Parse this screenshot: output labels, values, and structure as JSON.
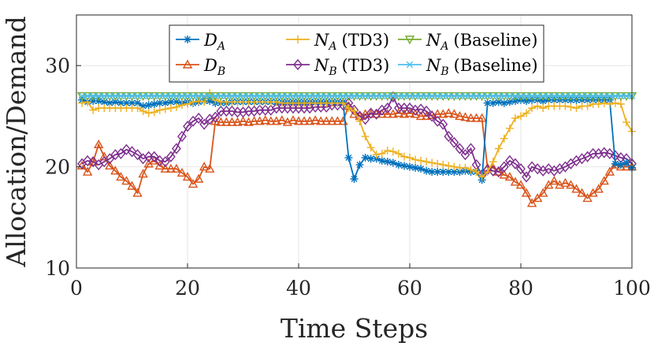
{
  "chart_data": {
    "type": "line",
    "xlabel": "Time Steps",
    "ylabel": "Allocation/Demand",
    "xlim": [
      0,
      100
    ],
    "ylim": [
      10,
      35
    ],
    "xticks": [
      "0",
      "20",
      "40",
      "60",
      "80",
      "100"
    ],
    "yticks": [
      "10",
      "20",
      "30"
    ],
    "grid": true,
    "legend_position": "top",
    "x": [
      1,
      2,
      3,
      4,
      5,
      6,
      7,
      8,
      9,
      10,
      11,
      12,
      13,
      14,
      15,
      16,
      17,
      18,
      19,
      20,
      21,
      22,
      23,
      24,
      25,
      26,
      27,
      28,
      29,
      30,
      31,
      32,
      33,
      34,
      35,
      36,
      37,
      38,
      39,
      40,
      41,
      42,
      43,
      44,
      45,
      46,
      47,
      48,
      49,
      50,
      51,
      52,
      53,
      54,
      55,
      56,
      57,
      58,
      59,
      60,
      61,
      62,
      63,
      64,
      65,
      66,
      67,
      68,
      69,
      70,
      71,
      72,
      73,
      74,
      75,
      76,
      77,
      78,
      79,
      80,
      81,
      82,
      83,
      84,
      85,
      86,
      87,
      88,
      89,
      90,
      91,
      92,
      93,
      94,
      95,
      96,
      97,
      98,
      99,
      100
    ],
    "series": [
      {
        "name": "D_A",
        "legend_main": "D",
        "legend_sub": "A",
        "legend_suffix": "",
        "color": "#0072BD",
        "marker": "star",
        "values": [
          26.6,
          26.4,
          26.5,
          26.5,
          26.4,
          26.3,
          26.4,
          26.3,
          26.3,
          26.3,
          26.3,
          26.0,
          26.1,
          26.2,
          26.3,
          26.3,
          26.4,
          26.4,
          26.3,
          26.4,
          26.3,
          26.4,
          26.5,
          26.5,
          26.3,
          26.3,
          26.3,
          26.4,
          26.4,
          26.4,
          26.4,
          26.4,
          26.4,
          26.4,
          26.4,
          26.4,
          26.4,
          26.4,
          26.4,
          26.4,
          26.4,
          26.4,
          26.4,
          26.4,
          26.4,
          26.4,
          26.4,
          26.4,
          20.9,
          18.8,
          20.2,
          20.9,
          20.8,
          20.8,
          20.6,
          20.5,
          20.4,
          20.2,
          20.1,
          20.0,
          19.9,
          19.8,
          19.6,
          19.5,
          19.5,
          19.5,
          19.5,
          19.5,
          19.5,
          19.6,
          19.5,
          19.5,
          18.7,
          26.3,
          26.3,
          26.4,
          26.3,
          26.4,
          26.5,
          26.6,
          26.5,
          26.6,
          26.6,
          26.5,
          26.6,
          26.6,
          26.6,
          26.6,
          26.6,
          26.6,
          26.6,
          26.6,
          26.6,
          26.6,
          26.6,
          26.6,
          20.3,
          20.2,
          20.4,
          19.9
        ]
      },
      {
        "name": "N_A (TD3)",
        "legend_main": "N",
        "legend_sub": "A",
        "legend_suffix": "(TD3)",
        "color": "#EDB120",
        "marker": "plus",
        "values": [
          26.3,
          26.4,
          25.6,
          25.8,
          25.8,
          25.8,
          25.8,
          25.8,
          25.8,
          25.8,
          25.8,
          25.5,
          25.3,
          25.4,
          25.6,
          25.7,
          25.8,
          25.9,
          26.1,
          26.2,
          26.4,
          26.5,
          26.4,
          27.3,
          26.6,
          26.4,
          26.4,
          26.4,
          26.4,
          26.4,
          26.4,
          26.4,
          26.4,
          26.4,
          26.4,
          26.4,
          26.3,
          26.3,
          26.3,
          26.3,
          26.3,
          26.3,
          26.3,
          26.3,
          26.3,
          26.3,
          26.3,
          26.3,
          25.8,
          25.5,
          24.5,
          23.0,
          21.9,
          21.2,
          21.3,
          21.6,
          21.5,
          21.3,
          21.0,
          20.9,
          20.7,
          20.6,
          20.5,
          20.4,
          20.3,
          20.2,
          20.1,
          20.0,
          19.9,
          19.9,
          19.7,
          19.5,
          19.0,
          19.5,
          20.5,
          21.8,
          22.8,
          23.8,
          24.8,
          25.0,
          25.3,
          25.8,
          26.0,
          25.8,
          26.0,
          26.0,
          26.0,
          26.0,
          25.9,
          25.8,
          26.0,
          26.0,
          26.2,
          26.2,
          26.3,
          26.2,
          26.3,
          26.2,
          24.4,
          23.5
        ]
      },
      {
        "name": "N_A (Baseline)",
        "legend_main": "N",
        "legend_sub": "A",
        "legend_suffix": "(Baseline)",
        "color": "#77AC30",
        "marker": "tri-down",
        "values": [
          27,
          27,
          27,
          27,
          27,
          27,
          27,
          27,
          27,
          27,
          27,
          27,
          27,
          27,
          27,
          27,
          27,
          27,
          27,
          27,
          27,
          27,
          27,
          27,
          27,
          27,
          27,
          27,
          27,
          27,
          27,
          27,
          27,
          27,
          27,
          27,
          27,
          27,
          27,
          27,
          27,
          27,
          27,
          27,
          27,
          27,
          27,
          27,
          27,
          27,
          27,
          27,
          27,
          27,
          27,
          27,
          27,
          27,
          27,
          27,
          27,
          27,
          27,
          27,
          27,
          27,
          27,
          27,
          27,
          27,
          27,
          27,
          27,
          27,
          27,
          27,
          27,
          27,
          27,
          27,
          27,
          27,
          27,
          27,
          27,
          27,
          27,
          27,
          27,
          27,
          27,
          27,
          27,
          27,
          27,
          27,
          27,
          27,
          27,
          27
        ]
      },
      {
        "name": "D_B",
        "legend_main": "D",
        "legend_sub": "B",
        "legend_suffix": "",
        "color": "#D95319",
        "marker": "tri-up",
        "values": [
          20.1,
          19.5,
          20.5,
          22.2,
          21.0,
          20.1,
          19.6,
          19.0,
          18.6,
          18.1,
          17.4,
          19.3,
          20.3,
          20.6,
          20.1,
          19.8,
          19.8,
          19.8,
          19.4,
          19.0,
          18.3,
          18.8,
          20.0,
          19.8,
          24.5,
          24.4,
          24.4,
          24.4,
          24.4,
          24.5,
          24.4,
          24.5,
          24.5,
          24.6,
          24.5,
          24.5,
          24.6,
          24.4,
          24.6,
          24.5,
          24.5,
          24.5,
          24.6,
          24.5,
          24.5,
          24.5,
          24.5,
          24.5,
          26.0,
          25.2,
          25.0,
          25.2,
          25.2,
          25.2,
          25.2,
          25.2,
          25.2,
          25.3,
          25.2,
          25.3,
          25.2,
          25.0,
          25.0,
          25.1,
          25.2,
          25.2,
          25.3,
          25.2,
          25.0,
          24.9,
          24.8,
          24.8,
          24.8,
          19.9,
          19.9,
          19.5,
          19.2,
          19.0,
          18.5,
          18.2,
          17.4,
          16.4,
          16.9,
          17.4,
          18.2,
          18.6,
          18.2,
          18.4,
          18.2,
          17.8,
          17.4,
          16.9,
          17.4,
          17.8,
          18.6,
          19.5,
          20.2,
          20.0,
          20.0,
          20.0
        ]
      },
      {
        "name": "N_B (TD3)",
        "legend_main": "N",
        "legend_sub": "B",
        "legend_suffix": "(TD3)",
        "color": "#7E2F8E",
        "marker": "diamond",
        "values": [
          20.3,
          20.6,
          20.5,
          20.2,
          20.5,
          20.8,
          21.2,
          21.3,
          21.7,
          21.5,
          21.2,
          20.8,
          21.0,
          21.0,
          20.6,
          20.5,
          21.0,
          21.8,
          23.0,
          24.0,
          24.5,
          24.8,
          24.2,
          24.7,
          24.9,
          25.5,
          25.5,
          25.5,
          25.4,
          25.4,
          25.5,
          25.5,
          25.6,
          25.6,
          25.6,
          25.8,
          25.8,
          25.8,
          25.8,
          25.8,
          25.8,
          25.8,
          25.9,
          25.9,
          25.9,
          26.1,
          26.1,
          26.1,
          26.3,
          25.6,
          25.0,
          24.7,
          25.3,
          25.2,
          25.6,
          25.8,
          26.9,
          25.8,
          25.8,
          25.8,
          25.6,
          25.7,
          25.5,
          25.0,
          24.5,
          24.2,
          23.0,
          22.4,
          21.8,
          21.2,
          21.8,
          20.2,
          19.2,
          19.7,
          19.6,
          19.5,
          20.0,
          20.6,
          20.3,
          19.8,
          19.0,
          20.0,
          19.8,
          19.6,
          19.8,
          19.6,
          19.8,
          20.0,
          20.3,
          20.6,
          20.8,
          21.0,
          21.3,
          21.3,
          21.4,
          21.3,
          21.1,
          20.9,
          20.8,
          20.3
        ]
      },
      {
        "name": "N_B (Baseline)",
        "legend_main": "N",
        "legend_sub": "B",
        "legend_suffix": "(Baseline)",
        "color": "#4DBEEE",
        "marker": "x",
        "values": [
          27,
          27,
          27,
          27,
          27,
          27,
          27,
          27,
          27,
          27,
          27,
          27,
          27,
          27,
          27,
          27,
          27,
          27,
          27,
          27,
          27,
          27,
          27,
          27,
          27,
          27,
          27,
          27,
          27,
          27,
          27,
          27,
          27,
          27,
          27,
          27,
          27,
          27,
          27,
          27,
          27,
          27,
          27,
          27,
          27,
          27,
          27,
          27,
          27,
          27,
          27,
          27,
          27,
          27,
          27,
          27,
          27,
          27,
          27,
          27,
          27,
          27,
          27,
          27,
          27,
          27,
          27,
          27,
          27,
          27,
          27,
          27,
          27,
          27,
          27,
          27,
          27,
          27,
          27,
          27,
          27,
          27,
          27,
          27,
          27,
          27,
          27,
          27,
          27,
          27,
          27,
          27,
          27,
          27,
          27,
          27,
          27,
          27,
          27,
          27
        ]
      }
    ]
  }
}
